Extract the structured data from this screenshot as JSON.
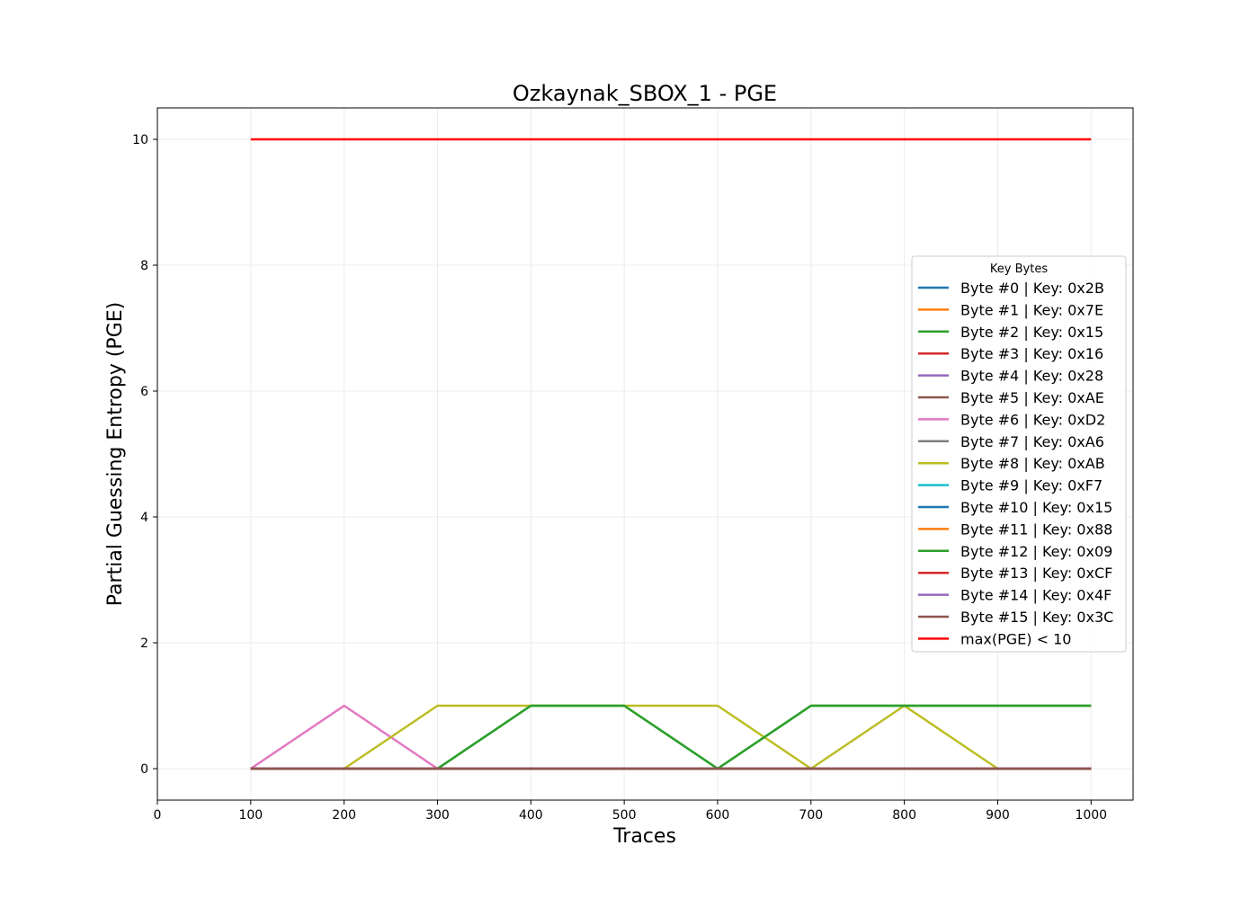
{
  "chart_data": {
    "type": "line",
    "title": "Ozkaynak_SBOX_1 - PGE",
    "xlabel": "Traces",
    "ylabel": "Partial Guessing Entropy (PGE)",
    "xlim": [
      0,
      1045
    ],
    "ylim": [
      -0.5,
      10.5
    ],
    "xticks": [
      0,
      100,
      200,
      300,
      400,
      500,
      600,
      700,
      800,
      900,
      1000
    ],
    "yticks": [
      0,
      2,
      4,
      6,
      8,
      10
    ],
    "grid": true,
    "legend": {
      "title": "Key Bytes",
      "placement": "center-right"
    },
    "x": [
      100,
      200,
      300,
      400,
      500,
      600,
      700,
      800,
      900,
      1000
    ],
    "series": [
      {
        "name": "Byte #0 | Key: 0x2B",
        "color": "#1f77b4",
        "values": [
          0,
          0,
          0,
          0,
          0,
          0,
          0,
          0,
          0,
          0
        ]
      },
      {
        "name": "Byte #1 | Key: 0x7E",
        "color": "#ff7f0e",
        "values": [
          0,
          0,
          0,
          0,
          0,
          0,
          0,
          0,
          0,
          0
        ]
      },
      {
        "name": "Byte #2 | Key: 0x15",
        "color": "#2ca02c",
        "values": [
          0,
          0,
          0,
          1,
          1,
          0,
          1,
          1,
          1,
          1
        ]
      },
      {
        "name": "Byte #3 | Key: 0x16",
        "color": "#d62728",
        "values": [
          0,
          0,
          0,
          0,
          0,
          0,
          0,
          0,
          0,
          0
        ]
      },
      {
        "name": "Byte #4 | Key: 0x28",
        "color": "#9467bd",
        "values": [
          0,
          0,
          0,
          0,
          0,
          0,
          0,
          0,
          0,
          0
        ]
      },
      {
        "name": "Byte #5 | Key: 0xAE",
        "color": "#8c564b",
        "values": [
          0,
          0,
          0,
          0,
          0,
          0,
          0,
          0,
          0,
          0
        ]
      },
      {
        "name": "Byte #6 | Key: 0xD2",
        "color": "#e377c2",
        "values": [
          0,
          1,
          0,
          0,
          0,
          0,
          0,
          0,
          0,
          0
        ]
      },
      {
        "name": "Byte #7 | Key: 0xA6",
        "color": "#7f7f7f",
        "values": [
          0,
          0,
          0,
          0,
          0,
          0,
          0,
          0,
          0,
          0
        ]
      },
      {
        "name": "Byte #8 | Key: 0xAB",
        "color": "#bcbd22",
        "values": [
          0,
          0,
          1,
          1,
          1,
          1,
          0,
          1,
          0,
          0
        ]
      },
      {
        "name": "Byte #9 | Key: 0xF7",
        "color": "#17becf",
        "values": [
          0,
          0,
          0,
          0,
          0,
          0,
          0,
          0,
          0,
          0
        ]
      },
      {
        "name": "Byte #10 | Key: 0x15",
        "color": "#1f77b4",
        "values": [
          0,
          0,
          0,
          0,
          0,
          0,
          0,
          0,
          0,
          0
        ]
      },
      {
        "name": "Byte #11 | Key: 0x88",
        "color": "#ff7f0e",
        "values": [
          0,
          0,
          0,
          0,
          0,
          0,
          0,
          0,
          0,
          0
        ]
      },
      {
        "name": "Byte #12 | Key: 0x09",
        "color": "#2ca02c",
        "values": [
          0,
          0,
          0,
          1,
          1,
          0,
          1,
          1,
          1,
          1
        ]
      },
      {
        "name": "Byte #13 | Key: 0xCF",
        "color": "#d62728",
        "values": [
          0,
          0,
          0,
          0,
          0,
          0,
          0,
          0,
          0,
          0
        ]
      },
      {
        "name": "Byte #14 | Key: 0x4F",
        "color": "#9467bd",
        "values": [
          0,
          0,
          0,
          0,
          0,
          0,
          0,
          0,
          0,
          0
        ]
      },
      {
        "name": "Byte #15 | Key: 0x3C",
        "color": "#8c564b",
        "values": [
          0,
          0,
          0,
          0,
          0,
          0,
          0,
          0,
          0,
          0
        ]
      },
      {
        "name": "max(PGE) < 10",
        "color": "#ff0000",
        "values": [
          10,
          10,
          10,
          10,
          10,
          10,
          10,
          10,
          10,
          10
        ]
      }
    ]
  }
}
